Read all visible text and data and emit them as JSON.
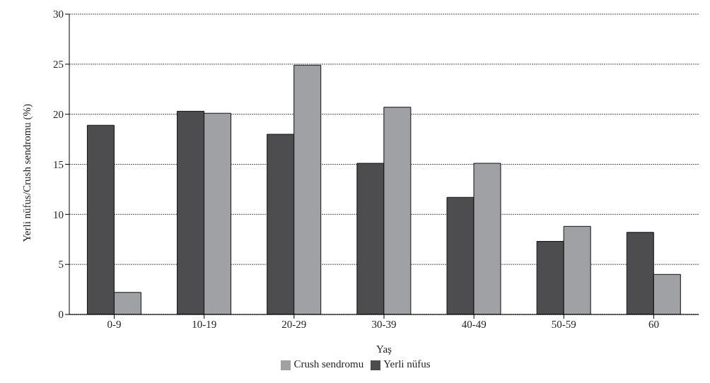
{
  "chart_data": {
    "type": "bar",
    "xlabel": "Yaş",
    "ylabel": "Yerli nüfus/Crush sendromu (%)",
    "categories": [
      "0-9",
      "10-19",
      "20-29",
      "30-39",
      "40-49",
      "50-59",
      "60"
    ],
    "series": [
      {
        "name": "Yerli nüfus",
        "color": "#4d4d4f",
        "values": [
          18.9,
          20.3,
          18.0,
          15.1,
          11.7,
          7.3,
          8.2
        ]
      },
      {
        "name": "Crush sendromu",
        "color": "#a0a1a4",
        "values": [
          2.2,
          20.1,
          24.9,
          20.7,
          15.1,
          8.8,
          4.0
        ]
      }
    ],
    "ylim": [
      0,
      30
    ],
    "yticks": [
      0,
      5,
      10,
      15,
      20,
      25,
      30
    ],
    "grid": "y",
    "legend": "bottom"
  }
}
